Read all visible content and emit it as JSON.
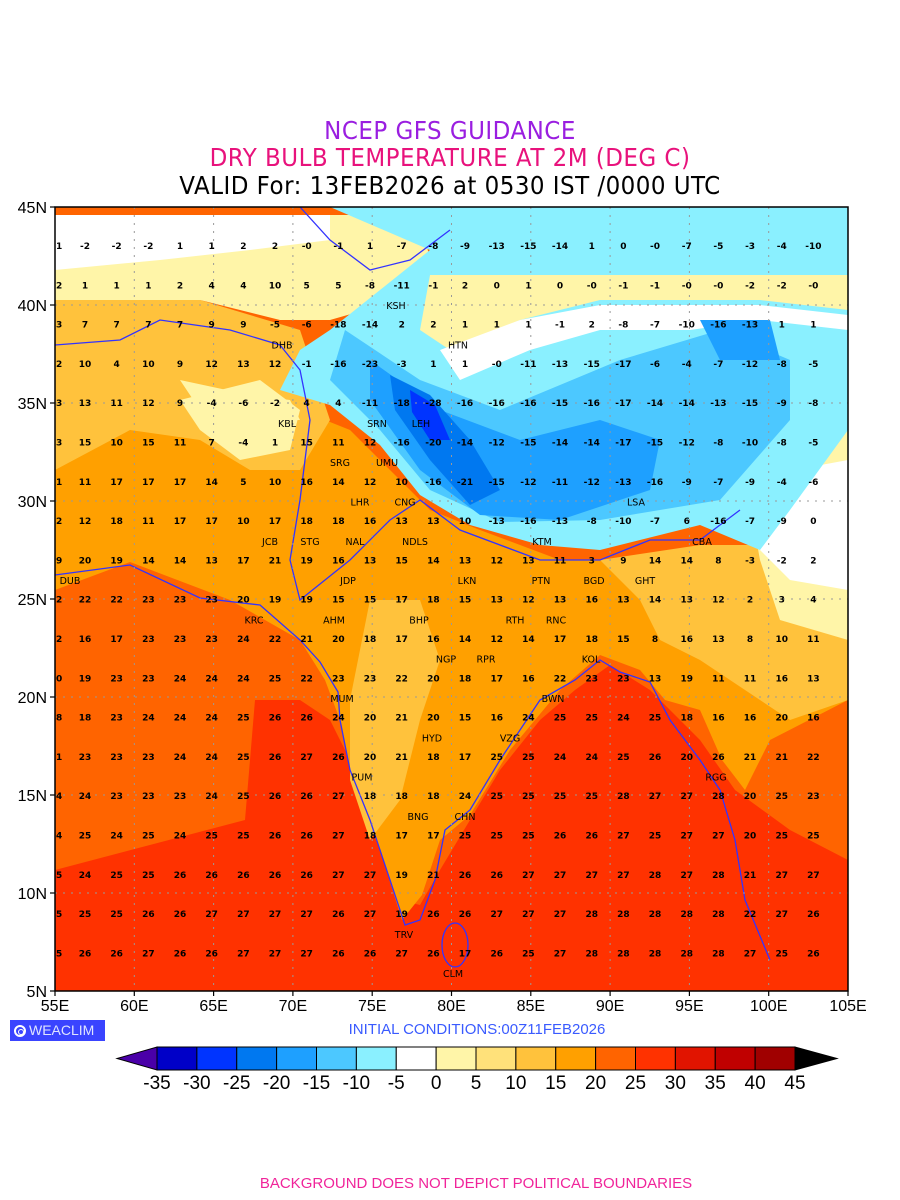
{
  "header": {
    "line1": "NCEP GFS GUIDANCE",
    "line2": "DRY BULB TEMPERATURE AT 2M (DEG C)",
    "line3": "VALID For: 13FEB2026 at 0530 IST /0000 UTC"
  },
  "axes": {
    "lat_labels": [
      "45N",
      "40N",
      "35N",
      "30N",
      "25N",
      "20N",
      "15N",
      "10N",
      "5N"
    ],
    "lon_labels": [
      "55E",
      "60E",
      "65E",
      "70E",
      "75E",
      "80E",
      "85E",
      "90E",
      "95E",
      "100E",
      "105E"
    ]
  },
  "grid_values": [
    [
      "1",
      "-2",
      "-2",
      "-2",
      "1",
      "1",
      "2",
      "2",
      "-0",
      "-1",
      "1",
      "-7",
      "-8",
      "-9",
      "-13",
      "-15",
      "-14",
      "1",
      "0",
      "-0",
      "-7",
      "-5",
      "-3",
      "-4",
      "-10"
    ],
    [
      "2",
      "1",
      "1",
      "1",
      "2",
      "4",
      "4",
      "10",
      "5",
      "5",
      "-8",
      "-11",
      "-1",
      "2",
      "0",
      "1",
      "0",
      "-0",
      "-1",
      "-1",
      "-0",
      "-0",
      "-2",
      "-2",
      "-0"
    ],
    [
      "3",
      "7",
      "7",
      "7",
      "7",
      "9",
      "9",
      "-5",
      "-6",
      "-18",
      "-14",
      "2",
      "2",
      "1",
      "1",
      "1",
      "-1",
      "2",
      "-8",
      "-7",
      "-10",
      "-16",
      "-13",
      "1",
      "1"
    ],
    [
      "2",
      "10",
      "4",
      "10",
      "9",
      "12",
      "13",
      "12",
      "-1",
      "-16",
      "-23",
      "-3",
      "1",
      "1",
      "-0",
      "-11",
      "-13",
      "-15",
      "-17",
      "-6",
      "-4",
      "-7",
      "-12",
      "-8",
      "-5"
    ],
    [
      "3",
      "13",
      "11",
      "12",
      "9",
      "-4",
      "-6",
      "-2",
      "4",
      "4",
      "-11",
      "-18",
      "-28",
      "-16",
      "-16",
      "-16",
      "-15",
      "-16",
      "-17",
      "-14",
      "-14",
      "-13",
      "-15",
      "-9",
      "-8"
    ],
    [
      "3",
      "15",
      "10",
      "15",
      "11",
      "7",
      "-4",
      "1",
      "15",
      "11",
      "12",
      "-16",
      "-20",
      "-14",
      "-12",
      "-15",
      "-14",
      "-14",
      "-17",
      "-15",
      "-12",
      "-8",
      "-10",
      "-8",
      "-5"
    ],
    [
      "1",
      "11",
      "17",
      "17",
      "17",
      "14",
      "5",
      "10",
      "16",
      "14",
      "12",
      "10",
      "-16",
      "-21",
      "-15",
      "-12",
      "-11",
      "-12",
      "-13",
      "-16",
      "-9",
      "-7",
      "-9",
      "-4",
      "-6"
    ],
    [
      "2",
      "12",
      "18",
      "11",
      "17",
      "17",
      "10",
      "17",
      "18",
      "18",
      "16",
      "13",
      "13",
      "10",
      "-13",
      "-16",
      "-13",
      "-8",
      "-10",
      "-7",
      "6",
      "-16",
      "-7",
      "-9",
      "0"
    ],
    [
      "9",
      "20",
      "19",
      "14",
      "14",
      "13",
      "17",
      "21",
      "19",
      "16",
      "13",
      "15",
      "14",
      "13",
      "12",
      "13",
      "11",
      "3",
      "9",
      "14",
      "14",
      "8",
      "-3",
      "-2",
      "2"
    ],
    [
      "2",
      "22",
      "22",
      "23",
      "23",
      "23",
      "20",
      "19",
      "19",
      "15",
      "15",
      "17",
      "18",
      "15",
      "13",
      "12",
      "13",
      "16",
      "13",
      "14",
      "13",
      "12",
      "2",
      "3",
      "4"
    ],
    [
      "2",
      "16",
      "17",
      "23",
      "23",
      "23",
      "24",
      "22",
      "21",
      "20",
      "18",
      "17",
      "16",
      "14",
      "12",
      "14",
      "17",
      "18",
      "15",
      "8",
      "16",
      "13",
      "8",
      "10",
      "11"
    ],
    [
      "0",
      "19",
      "23",
      "23",
      "24",
      "24",
      "24",
      "25",
      "22",
      "23",
      "23",
      "22",
      "20",
      "18",
      "17",
      "16",
      "22",
      "23",
      "23",
      "13",
      "19",
      "11",
      "11",
      "16",
      "13"
    ],
    [
      "8",
      "18",
      "23",
      "24",
      "24",
      "24",
      "25",
      "26",
      "26",
      "24",
      "20",
      "21",
      "20",
      "15",
      "16",
      "24",
      "25",
      "25",
      "24",
      "25",
      "18",
      "16",
      "16",
      "20",
      "16"
    ],
    [
      "1",
      "23",
      "23",
      "23",
      "24",
      "24",
      "25",
      "26",
      "27",
      "26",
      "20",
      "21",
      "18",
      "17",
      "25",
      "25",
      "24",
      "24",
      "25",
      "26",
      "20",
      "26",
      "21",
      "21",
      "22"
    ],
    [
      "4",
      "24",
      "23",
      "23",
      "23",
      "24",
      "25",
      "26",
      "26",
      "27",
      "18",
      "18",
      "18",
      "24",
      "25",
      "25",
      "25",
      "25",
      "28",
      "27",
      "27",
      "28",
      "20",
      "25",
      "23"
    ],
    [
      "4",
      "25",
      "24",
      "25",
      "24",
      "25",
      "25",
      "26",
      "26",
      "27",
      "18",
      "17",
      "17",
      "25",
      "25",
      "25",
      "26",
      "26",
      "27",
      "25",
      "27",
      "27",
      "20",
      "25",
      "25"
    ],
    [
      "5",
      "24",
      "25",
      "25",
      "26",
      "26",
      "26",
      "26",
      "26",
      "27",
      "27",
      "19",
      "21",
      "26",
      "26",
      "27",
      "27",
      "27",
      "27",
      "28",
      "27",
      "28",
      "21",
      "27",
      "27"
    ],
    [
      "5",
      "25",
      "25",
      "26",
      "26",
      "27",
      "27",
      "27",
      "27",
      "26",
      "27",
      "19",
      "26",
      "26",
      "27",
      "27",
      "27",
      "28",
      "28",
      "28",
      "28",
      "28",
      "22",
      "27",
      "26"
    ],
    [
      "5",
      "26",
      "26",
      "27",
      "26",
      "26",
      "27",
      "27",
      "27",
      "26",
      "26",
      "27",
      "26",
      "17",
      "26",
      "25",
      "27",
      "28",
      "28",
      "28",
      "28",
      "28",
      "27",
      "25",
      "26"
    ]
  ],
  "stations": [
    "DHB",
    "KSH",
    "HTN",
    "KBL",
    "SRN",
    "LEH",
    "UMU",
    "SRG",
    "LHR",
    "CNG",
    "STG",
    "JCB",
    "NAL",
    "NDLS",
    "KTM",
    "LKN",
    "BGD",
    "CBA",
    "GHT",
    "LSA",
    "JDP",
    "PTN",
    "RTH",
    "DUB",
    "KRC",
    "RNC",
    "BHP",
    "AHM",
    "KOL",
    "NGP",
    "RPR",
    "BWN",
    "MUM",
    "HYD",
    "VZG",
    "RGG",
    "PUM",
    "CHN",
    "BNG",
    "TRV",
    "CLM"
  ],
  "colorbar": {
    "labels": [
      "-35",
      "-30",
      "-25",
      "-20",
      "-15",
      "-10",
      "-5",
      "0",
      "5",
      "10",
      "15",
      "20",
      "25",
      "30",
      "35",
      "40",
      "45"
    ],
    "colors": [
      "#0000c8",
      "#0034ff",
      "#0078f0",
      "#1ea0ff",
      "#4cc8ff",
      "#8af0ff",
      "#ffffff",
      "#fff5a8",
      "#ffe17a",
      "#ffc23c",
      "#ffa000",
      "#ff6400",
      "#ff3200",
      "#e11400",
      "#c00000",
      "#a00000"
    ],
    "under_color": "#4a00a8",
    "over_color": "#000000"
  },
  "logo": "WEACLIM",
  "initial_conditions": "INITIAL CONDITIONS:00Z11FEB2026",
  "footer": "BACKGROUND DOES NOT DEPICT POLITICAL BOUNDARIES"
}
